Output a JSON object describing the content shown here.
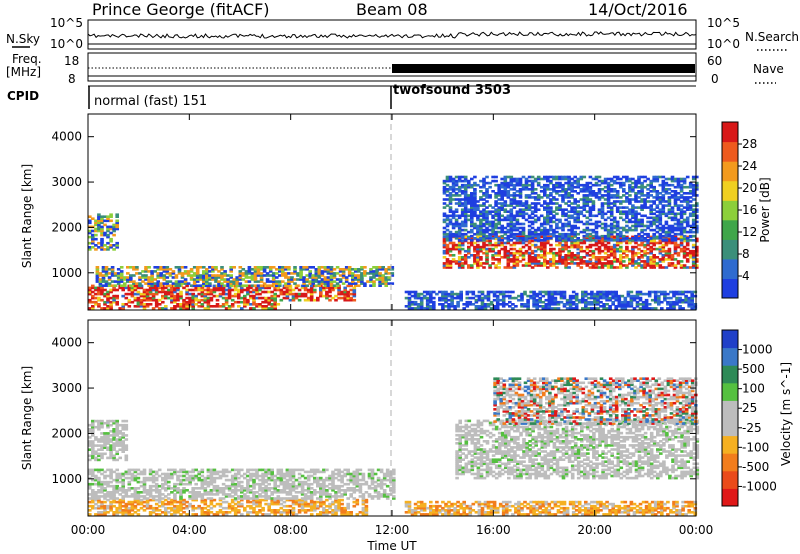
{
  "header": {
    "station": "Prince George (fitACF)",
    "beam": "Beam 08",
    "date": "14/Oct/2016"
  },
  "noise_panel": {
    "left_label": "N.Sky",
    "right_label": "N.Search",
    "left_ticks": [
      "10^5",
      "10^0"
    ],
    "right_ticks": [
      "10^5",
      "10^0"
    ]
  },
  "freq_panel": {
    "left_label_1": "Freq.",
    "left_label_2": "[MHz]",
    "right_label": "Nave",
    "left_ticks": [
      "18",
      "8"
    ],
    "right_ticks": [
      "60",
      "0"
    ]
  },
  "cpid": {
    "label": "CPID",
    "segments": [
      {
        "name": "normal (fast) 151",
        "start_hour": 0,
        "end_hour": 12
      },
      {
        "name": "twofsound 3503",
        "start_hour": 12,
        "end_hour": 24
      }
    ]
  },
  "colors": {
    "power_scale": [
      "#1f3fe0",
      "#2f6bd0",
      "#3b8f7a",
      "#3fa64a",
      "#8ccf3a",
      "#f0d020",
      "#f39a1d",
      "#ee5a1e",
      "#d81818"
    ],
    "velocity_scale": [
      "#2040c8",
      "#3a78c8",
      "#2e8a57",
      "#55c040",
      "#bdbdbd",
      "#bdbdbd",
      "#f5b021",
      "#f27d1c",
      "#ea4b1a",
      "#e01818"
    ]
  },
  "chart_data": [
    {
      "type": "heatmap",
      "title": "",
      "ylabel": "Slant Range [km]",
      "xlabel": "",
      "colorbar_label": "Power [dB]",
      "colorbar_ticks": [
        "28",
        "24",
        "20",
        "16",
        "12",
        "8",
        "4"
      ],
      "yticks": [
        "1000",
        "2000",
        "3000",
        "4000"
      ],
      "ylim": [
        180,
        4500
      ],
      "xlim_hours": [
        0,
        24
      ],
      "vertical_marker_hour": 12,
      "bands": [
        {
          "t0": 0,
          "t1": 7.5,
          "r0": 200,
          "r1": 380,
          "level": "high"
        },
        {
          "t0": 0,
          "t1": 10.5,
          "r0": 380,
          "r1": 700,
          "level": "high"
        },
        {
          "t0": 0.3,
          "t1": 12,
          "r0": 700,
          "r1": 1150,
          "level": "medium"
        },
        {
          "t0": 0,
          "t1": 1.2,
          "r0": 1500,
          "r1": 2300,
          "level": "medium"
        },
        {
          "t0": 14,
          "t1": 24,
          "r0": 1100,
          "r1": 1800,
          "level": "high"
        },
        {
          "t0": 14,
          "t1": 24,
          "r0": 1700,
          "r1": 3100,
          "level": "low"
        },
        {
          "t0": 12.5,
          "t1": 24,
          "r0": 200,
          "r1": 600,
          "level": "low"
        }
      ]
    },
    {
      "type": "heatmap",
      "title": "",
      "ylabel": "Slant Range [km]",
      "xlabel": "Time UT",
      "colorbar_label": "Velocity [m s^-1]",
      "colorbar_ticks": [
        "1000",
        "500",
        "100",
        "25",
        "-25",
        "-100",
        "-500",
        "-1000"
      ],
      "yticks": [
        "1000",
        "2000",
        "3000",
        "4000"
      ],
      "xticks": [
        "00:00",
        "04:00",
        "08:00",
        "12:00",
        "16:00",
        "20:00",
        "00:00"
      ],
      "ylim": [
        180,
        4500
      ],
      "xlim_hours": [
        0,
        24
      ],
      "vertical_marker_hour": 12,
      "bands": [
        {
          "t0": 0,
          "t1": 11,
          "r0": 200,
          "r1": 550,
          "level": "negative"
        },
        {
          "t0": 0,
          "t1": 12,
          "r0": 550,
          "r1": 1200,
          "level": "near-zero"
        },
        {
          "t0": 0,
          "t1": 1.5,
          "r0": 1400,
          "r1": 2300,
          "level": "near-zero"
        },
        {
          "t0": 14.5,
          "t1": 24,
          "r0": 1000,
          "r1": 2300,
          "level": "near-zero"
        },
        {
          "t0": 16,
          "t1": 24,
          "r0": 2200,
          "r1": 3200,
          "level": "mixed"
        },
        {
          "t0": 12.5,
          "t1": 24,
          "r0": 200,
          "r1": 500,
          "level": "negative"
        }
      ]
    }
  ]
}
